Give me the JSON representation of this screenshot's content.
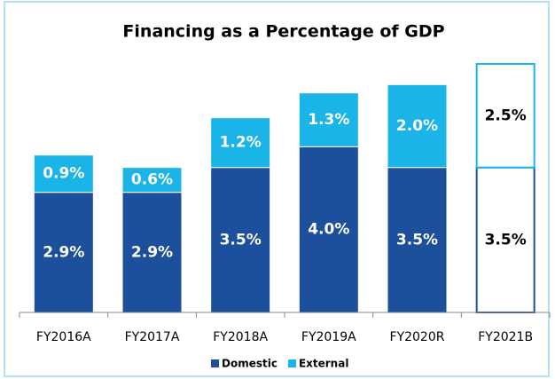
{
  "chart_data": {
    "type": "stacked_bar",
    "title": "Financing as a Percentage of GDP",
    "categories": [
      "FY2016A",
      "FY2017A",
      "FY2018A",
      "FY2019A",
      "FY2020R",
      "FY2021B"
    ],
    "series": [
      {
        "name": "Domestic",
        "color": "#1c4f9c",
        "values": [
          2.9,
          2.9,
          3.5,
          4.0,
          3.5,
          3.5
        ],
        "value_labels": [
          "2.9%",
          "2.9%",
          "3.5%",
          "4.0%",
          "3.5%",
          "3.5%"
        ]
      },
      {
        "name": "External",
        "color": "#1ab4e8",
        "values": [
          0.9,
          0.6,
          1.2,
          1.3,
          2.0,
          2.5
        ],
        "value_labels": [
          "0.9%",
          "0.6%",
          "1.2%",
          "1.3%",
          "2.0%",
          "2.5%"
        ]
      }
    ],
    "outlined": [
      false,
      false,
      false,
      false,
      false,
      true
    ],
    "legend": "bottom"
  }
}
